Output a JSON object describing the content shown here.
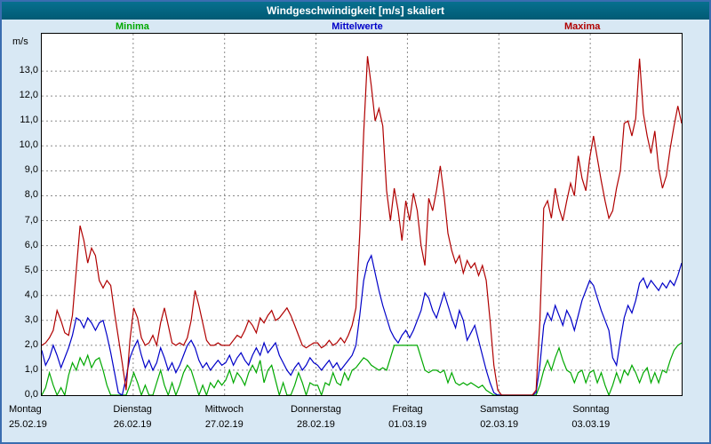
{
  "window": {
    "title": "Windgeschwindigkeit [m/s] skaliert"
  },
  "axis": {
    "unit": "m/s"
  },
  "legend": [
    {
      "label": "Minima",
      "color": "#00a800"
    },
    {
      "label": "Mittelwerte",
      "color": "#0000c8"
    },
    {
      "label": "Maxima",
      "color": "#b00000"
    }
  ],
  "chart_data": {
    "type": "line",
    "title": "Windgeschwindigkeit [m/s] skaliert",
    "ylabel": "m/s",
    "ylim": [
      0,
      14.5
    ],
    "yticks": [
      0,
      1,
      2,
      3,
      4,
      5,
      6,
      7,
      8,
      9,
      10,
      11,
      12,
      13
    ],
    "grid": "dashed",
    "legend_position": "top",
    "points_per_day": 24,
    "categories": [
      {
        "weekday": "Montag",
        "date": "25.02.19"
      },
      {
        "weekday": "Dienstag",
        "date": "26.02.19"
      },
      {
        "weekday": "Mittwoch",
        "date": "27.02.19"
      },
      {
        "weekday": "Donnerstag",
        "date": "28.02.19"
      },
      {
        "weekday": "Freitag",
        "date": "01.03.19"
      },
      {
        "weekday": "Samstag",
        "date": "02.03.19"
      },
      {
        "weekday": "Sonntag",
        "date": "03.03.19"
      }
    ],
    "series": [
      {
        "name": "Minima",
        "color": "#00a800",
        "values": [
          0.0,
          0.3,
          0.9,
          0.4,
          0.0,
          0.3,
          0.0,
          0.8,
          1.3,
          1.0,
          1.5,
          1.2,
          1.6,
          1.1,
          1.4,
          1.5,
          1.0,
          0.4,
          0.0,
          0.0,
          0.0,
          0.0,
          0.0,
          0.4,
          0.9,
          0.5,
          0.0,
          0.4,
          0.0,
          0.0,
          0.5,
          1.0,
          0.4,
          0.0,
          0.5,
          0.0,
          0.4,
          0.9,
          1.2,
          1.0,
          0.5,
          0.0,
          0.4,
          0.0,
          0.5,
          0.3,
          0.6,
          0.4,
          0.6,
          1.0,
          0.5,
          0.9,
          0.7,
          0.4,
          0.9,
          1.2,
          0.9,
          1.4,
          0.5,
          1.0,
          1.2,
          0.6,
          0.0,
          0.5,
          0.0,
          0.0,
          0.4,
          0.9,
          0.5,
          0.0,
          0.5,
          0.4,
          0.4,
          0.0,
          0.5,
          0.4,
          0.9,
          0.5,
          0.4,
          0.9,
          0.6,
          1.0,
          1.1,
          1.3,
          1.5,
          1.4,
          1.2,
          1.1,
          1.0,
          1.1,
          1.0,
          1.5,
          2.0,
          2.0,
          2.0,
          2.0,
          2.0,
          2.0,
          2.0,
          1.5,
          1.0,
          0.9,
          1.0,
          1.0,
          0.9,
          1.0,
          0.5,
          0.9,
          0.5,
          0.4,
          0.5,
          0.4,
          0.5,
          0.4,
          0.3,
          0.4,
          0.2,
          0.1,
          0.0,
          0.0,
          0.0,
          0.0,
          0.0,
          0.0,
          0.0,
          0.0,
          0.0,
          0.0,
          0.0,
          0.0,
          0.4,
          1.0,
          1.4,
          1.0,
          1.5,
          1.9,
          1.4,
          1.0,
          0.9,
          0.5,
          0.9,
          1.0,
          0.5,
          0.9,
          1.0,
          0.5,
          0.9,
          0.4,
          0.0,
          0.4,
          0.9,
          0.5,
          1.0,
          0.8,
          1.2,
          0.9,
          0.5,
          0.9,
          1.1,
          0.5,
          0.9,
          0.5,
          1.0,
          0.9,
          1.4,
          1.8,
          2.0,
          2.1
        ]
      },
      {
        "name": "Mittelwerte",
        "color": "#0000c8",
        "values": [
          1.8,
          1.2,
          1.5,
          2.0,
          1.6,
          1.1,
          1.5,
          1.9,
          2.4,
          3.1,
          3.0,
          2.7,
          3.1,
          2.9,
          2.6,
          2.9,
          3.0,
          2.4,
          1.7,
          0.9,
          0.1,
          0.0,
          0.7,
          1.5,
          1.9,
          2.2,
          1.6,
          1.1,
          1.4,
          1.0,
          1.3,
          1.9,
          1.5,
          1.0,
          1.3,
          0.9,
          1.2,
          1.6,
          2.0,
          2.2,
          1.9,
          1.4,
          1.1,
          1.3,
          1.0,
          1.2,
          1.4,
          1.2,
          1.3,
          1.6,
          1.2,
          1.5,
          1.7,
          1.4,
          1.2,
          1.6,
          1.9,
          1.6,
          2.1,
          1.7,
          1.9,
          2.1,
          1.6,
          1.3,
          1.0,
          0.8,
          1.1,
          1.3,
          1.0,
          1.2,
          1.5,
          1.3,
          1.2,
          1.0,
          1.2,
          1.4,
          1.1,
          1.3,
          1.0,
          1.2,
          1.4,
          1.6,
          2.0,
          3.2,
          4.6,
          5.3,
          5.6,
          4.9,
          4.2,
          3.6,
          3.1,
          2.6,
          2.3,
          2.1,
          2.4,
          2.6,
          2.3,
          2.6,
          3.0,
          3.4,
          4.1,
          3.9,
          3.4,
          3.1,
          3.6,
          4.1,
          3.6,
          3.1,
          2.7,
          3.4,
          3.0,
          2.2,
          2.5,
          2.8,
          2.2,
          1.6,
          1.0,
          0.5,
          0.1,
          0.0,
          0.0,
          0.0,
          0.0,
          0.0,
          0.0,
          0.0,
          0.0,
          0.0,
          0.0,
          0.1,
          1.2,
          2.8,
          3.3,
          3.0,
          3.6,
          3.2,
          2.8,
          3.4,
          3.1,
          2.6,
          3.2,
          3.8,
          4.2,
          4.6,
          4.4,
          3.9,
          3.4,
          3.0,
          2.6,
          1.5,
          1.2,
          2.2,
          3.1,
          3.6,
          3.3,
          3.8,
          4.5,
          4.7,
          4.3,
          4.6,
          4.4,
          4.2,
          4.5,
          4.3,
          4.6,
          4.4,
          4.8,
          5.3
        ]
      },
      {
        "name": "Maxima",
        "color": "#b00000",
        "values": [
          2.0,
          2.1,
          2.3,
          2.6,
          3.4,
          3.0,
          2.5,
          2.4,
          3.2,
          5.0,
          6.8,
          6.2,
          5.3,
          5.9,
          5.6,
          4.6,
          4.3,
          4.6,
          4.4,
          3.3,
          2.3,
          1.3,
          0.2,
          2.2,
          3.5,
          3.1,
          2.3,
          2.0,
          2.1,
          2.4,
          2.0,
          2.9,
          3.5,
          2.8,
          2.1,
          2.0,
          2.1,
          2.0,
          2.3,
          3.0,
          4.2,
          3.6,
          2.9,
          2.2,
          2.0,
          2.0,
          2.1,
          2.0,
          2.0,
          2.0,
          2.2,
          2.4,
          2.3,
          2.6,
          3.0,
          2.8,
          2.5,
          3.1,
          2.9,
          3.2,
          3.4,
          3.0,
          3.1,
          3.3,
          3.5,
          3.2,
          2.8,
          2.4,
          2.0,
          1.9,
          2.0,
          2.1,
          2.1,
          1.9,
          2.0,
          2.2,
          2.0,
          2.1,
          2.3,
          2.1,
          2.4,
          2.8,
          3.5,
          6.5,
          10.5,
          13.6,
          12.4,
          11.0,
          11.5,
          10.8,
          8.2,
          7.0,
          8.3,
          7.4,
          6.2,
          7.8,
          7.0,
          8.1,
          7.4,
          6.0,
          5.2,
          7.9,
          7.4,
          8.2,
          9.2,
          8.0,
          6.5,
          5.8,
          5.3,
          5.6,
          4.9,
          5.4,
          5.1,
          5.3,
          4.8,
          5.2,
          4.6,
          3.0,
          1.2,
          0.2,
          0.0,
          0.0,
          0.0,
          0.0,
          0.0,
          0.0,
          0.0,
          0.0,
          0.0,
          0.2,
          3.0,
          7.5,
          7.8,
          7.1,
          8.3,
          7.5,
          7.0,
          7.8,
          8.5,
          8.0,
          9.6,
          8.7,
          8.2,
          9.5,
          10.4,
          9.5,
          8.6,
          7.8,
          7.1,
          7.4,
          8.3,
          9.0,
          10.9,
          11.0,
          10.4,
          11.1,
          13.5,
          11.3,
          10.4,
          9.7,
          10.6,
          9.1,
          8.3,
          8.8,
          9.9,
          10.8,
          11.6,
          10.9
        ]
      }
    ]
  }
}
